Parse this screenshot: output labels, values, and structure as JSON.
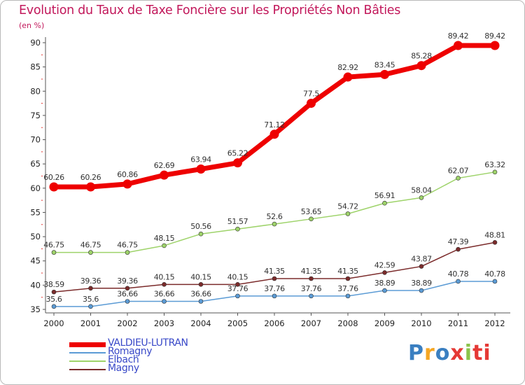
{
  "chart_data": {
    "type": "line",
    "title": "Evolution du Taux de Taxe Foncière sur les Propriétés Non Bâties",
    "subtitle": "(en %)",
    "x": [
      "2000",
      "2001",
      "2002",
      "2003",
      "2004",
      "2005",
      "2006",
      "2007",
      "2008",
      "2009",
      "2010",
      "2011",
      "2012"
    ],
    "yticks": [
      "35",
      "40",
      "45",
      "50",
      "55",
      "60",
      "65",
      "70",
      "75",
      "80",
      "85",
      "90"
    ],
    "ylim": [
      35,
      90
    ],
    "grid": false,
    "legend_position": "bottom-left",
    "series": [
      {
        "name": "VALDIEU-LUTRAN",
        "color": "#ee0000",
        "values": [
          60.26,
          60.26,
          60.86,
          62.69,
          63.94,
          65.22,
          71.12,
          77.5,
          82.92,
          83.45,
          85.28,
          89.42,
          89.42
        ],
        "labels": [
          "60.26",
          "60.26",
          "60.86",
          "62.69",
          "63.94",
          "65.22",
          "71.12",
          "77.5",
          "82.92",
          "83.45",
          "85.28",
          "89.42",
          "89.42"
        ]
      },
      {
        "name": "Romagny",
        "color": "#5b9bd5",
        "values": [
          35.6,
          35.6,
          36.66,
          36.66,
          36.66,
          37.76,
          37.76,
          37.76,
          37.76,
          38.89,
          38.89,
          40.78,
          40.78
        ],
        "labels": [
          "35.6",
          "35.6",
          "36.66",
          "36.66",
          "36.66",
          "37.76",
          "37.76",
          "37.76",
          "37.76",
          "38.89",
          "38.89",
          "40.78",
          "40.78"
        ]
      },
      {
        "name": "Elbach",
        "color": "#9ed36a",
        "values": [
          46.75,
          46.75,
          46.75,
          48.15,
          50.56,
          51.57,
          52.6,
          53.65,
          54.72,
          56.91,
          58.04,
          62.07,
          63.32
        ],
        "labels": [
          "46.75",
          "46.75",
          "46.75",
          "48.15",
          "50.56",
          "51.57",
          "52.6",
          "53.65",
          "54.72",
          "56.91",
          "58.04",
          "62.07",
          "63.32"
        ]
      },
      {
        "name": "Magny",
        "color": "#7b2b2b",
        "values": [
          38.59,
          39.36,
          39.36,
          40.15,
          40.15,
          40.15,
          41.35,
          41.35,
          41.35,
          42.59,
          43.87,
          47.39,
          48.81
        ],
        "labels": [
          "38.59",
          "39.36",
          "39.36",
          "40.15",
          "40.15",
          "40.15",
          "41.35",
          "41.35",
          "41.35",
          "42.59",
          "43.87",
          "47.39",
          "48.81"
        ]
      }
    ]
  },
  "logo": {
    "letters": [
      "P",
      "r",
      "o",
      "x",
      "i",
      "t",
      "i"
    ]
  }
}
